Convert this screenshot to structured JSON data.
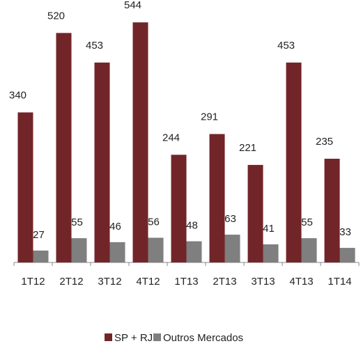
{
  "chart_data": {
    "type": "bar",
    "categories": [
      "1T12",
      "2T12",
      "3T12",
      "4T12",
      "1T13",
      "2T13",
      "3T13",
      "4T13",
      "1T14"
    ],
    "series": [
      {
        "name": "SP + RJ",
        "color": "#722528",
        "values": [
          340,
          520,
          453,
          544,
          244,
          291,
          221,
          453,
          235
        ]
      },
      {
        "name": "Outros Mercados",
        "color": "#7f7f7f",
        "values": [
          27,
          55,
          46,
          56,
          48,
          63,
          41,
          55,
          33
        ]
      }
    ],
    "ylim": [
      0,
      560
    ],
    "legend": "bottom"
  }
}
